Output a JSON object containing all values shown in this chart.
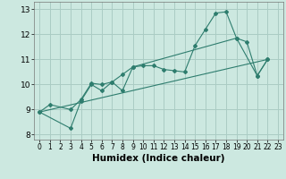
{
  "line1": {
    "x": [
      0,
      1,
      3,
      4,
      5,
      6,
      7,
      8,
      9,
      10,
      11,
      12,
      13,
      14,
      15,
      16,
      17,
      18,
      19,
      20,
      21,
      22
    ],
    "y": [
      8.9,
      9.2,
      9.0,
      9.4,
      10.05,
      10.0,
      10.1,
      9.75,
      10.7,
      10.75,
      10.75,
      10.6,
      10.55,
      10.5,
      11.55,
      12.2,
      12.85,
      12.9,
      11.85,
      11.7,
      10.35,
      11.0
    ]
  },
  "line2": {
    "x": [
      0,
      3,
      4,
      5,
      6,
      7,
      8,
      9,
      19,
      21,
      22
    ],
    "y": [
      8.9,
      8.25,
      9.35,
      10.0,
      9.75,
      10.1,
      10.4,
      10.7,
      11.85,
      10.35,
      11.0
    ]
  },
  "line3": {
    "x": [
      0,
      22
    ],
    "y": [
      8.9,
      11.0
    ]
  },
  "bg_color": "#cce8e0",
  "line_color": "#2e7d6e",
  "grid_color": "#aaccc4",
  "xlabel": "Humidex (Indice chaleur)",
  "xlabel_fontsize": 7.5,
  "xlim": [
    -0.5,
    23.5
  ],
  "ylim": [
    7.8,
    13.3
  ],
  "yticks": [
    8,
    9,
    10,
    11,
    12,
    13
  ],
  "xticks": [
    0,
    1,
    2,
    3,
    4,
    5,
    6,
    7,
    8,
    9,
    10,
    11,
    12,
    13,
    14,
    15,
    16,
    17,
    18,
    19,
    20,
    21,
    22,
    23
  ]
}
